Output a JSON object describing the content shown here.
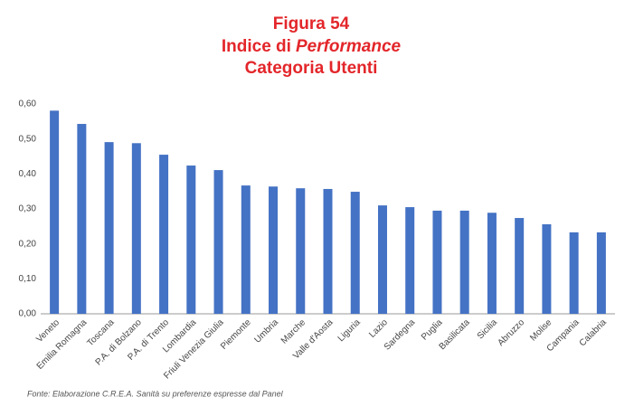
{
  "chart_data": {
    "type": "bar",
    "title": [
      "Figura 54",
      [
        "Indice di",
        "Performance"
      ],
      "Categoria Utenti"
    ],
    "categories": [
      "Veneto",
      "Emilia Romagna",
      "Toscana",
      "P.A. di Bolzano",
      "P.A. di Trento",
      "Lombardia",
      "Friuli Venezia Giulia",
      "Piemonte",
      "Umbria",
      "Marche",
      "Valle d'Aosta",
      "Liguria",
      "Lazio",
      "Sardegna",
      "Puglia",
      "Basilicata",
      "Sicilia",
      "Abruzzo",
      "Molise",
      "Campania",
      "Calabria"
    ],
    "values": [
      0.581,
      0.543,
      0.491,
      0.488,
      0.455,
      0.424,
      0.411,
      0.367,
      0.364,
      0.359,
      0.357,
      0.349,
      0.31,
      0.305,
      0.295,
      0.295,
      0.289,
      0.274,
      0.256,
      0.233,
      0.233
    ],
    "color": "#4472c4",
    "ylim": [
      0,
      0.6
    ],
    "yticks": [
      {
        "value": 0,
        "label": "0,00"
      },
      {
        "value": 0.1,
        "label": "0,10"
      },
      {
        "value": 0.2,
        "label": "0,20"
      },
      {
        "value": 0.3,
        "label": "0,30"
      },
      {
        "value": 0.4,
        "label": "0,40"
      },
      {
        "value": 0.5,
        "label": "0,50"
      },
      {
        "value": 0.6,
        "label": "0,60"
      }
    ],
    "grid": false,
    "source": "Fonte: Elaborazione C.R.E.A. Sanità su preferenze espresse dal Panel"
  }
}
